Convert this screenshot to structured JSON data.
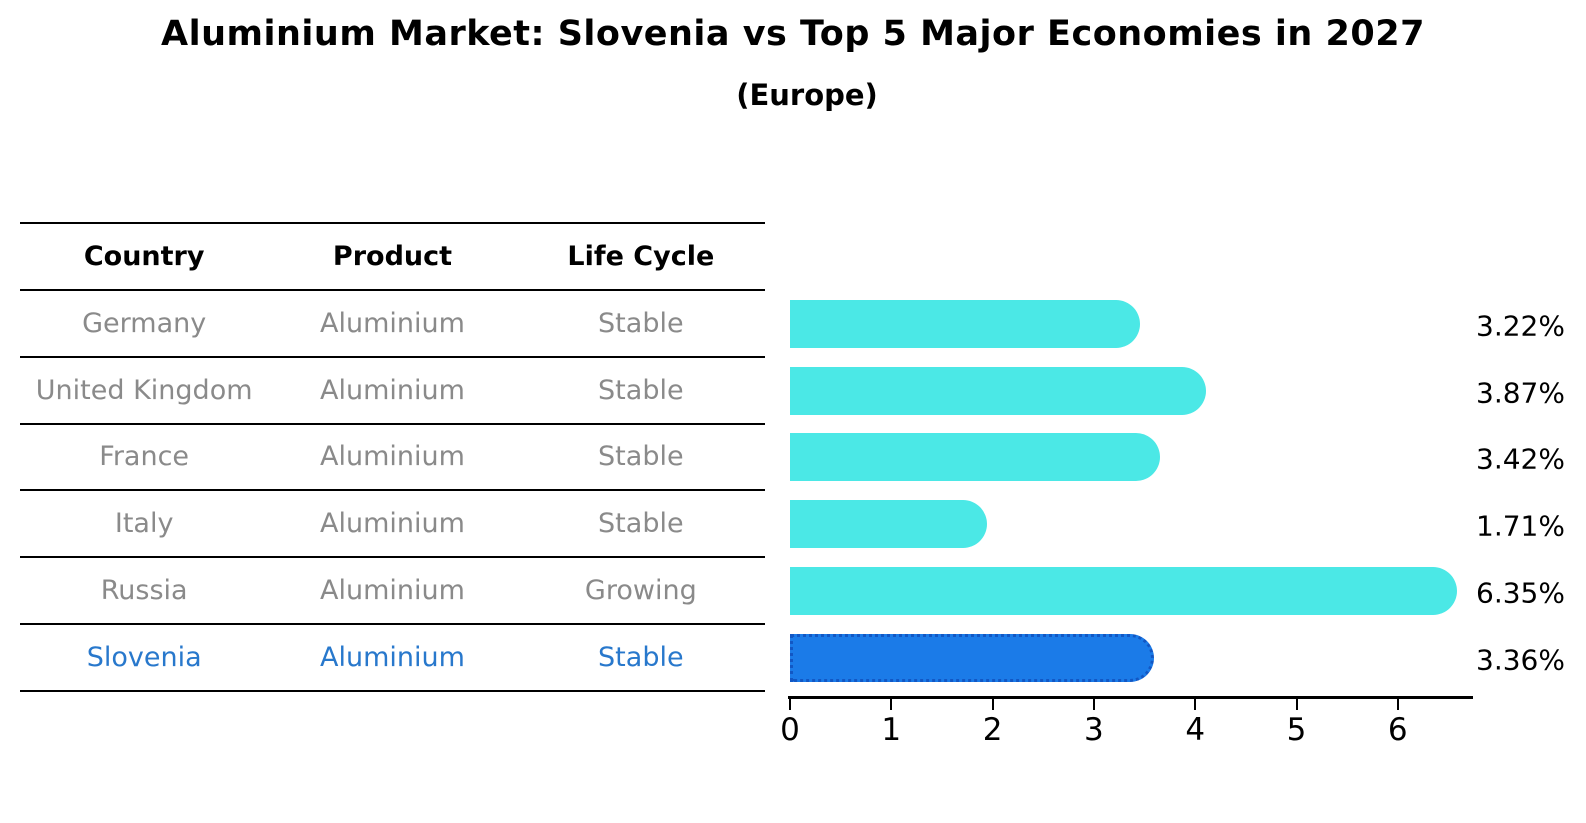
{
  "title": "Aluminium Market: Slovenia vs Top 5 Major Economies in 2027",
  "subtitle": "(Europe)",
  "table": {
    "headers": [
      "Country",
      "Product",
      "Life Cycle"
    ],
    "rows": [
      {
        "country": "Germany",
        "product": "Aluminium",
        "life_cycle": "Stable",
        "highlight": false
      },
      {
        "country": "United Kingdom",
        "product": "Aluminium",
        "life_cycle": "Stable",
        "highlight": false
      },
      {
        "country": "France",
        "product": "Aluminium",
        "life_cycle": "Stable",
        "highlight": false
      },
      {
        "country": "Italy",
        "product": "Aluminium",
        "life_cycle": "Stable",
        "highlight": false
      },
      {
        "country": "Russia",
        "product": "Aluminium",
        "life_cycle": "Growing",
        "highlight": false
      },
      {
        "country": "Slovenia",
        "product": "Aluminium",
        "life_cycle": "Stable",
        "highlight": true
      }
    ]
  },
  "chart_data": {
    "type": "bar",
    "orientation": "horizontal",
    "title": "Aluminium Market: Slovenia vs Top 5 Major Economies in 2027 (Europe)",
    "categories": [
      "Germany",
      "United Kingdom",
      "France",
      "Italy",
      "Russia",
      "Slovenia"
    ],
    "values": [
      3.22,
      3.87,
      3.42,
      1.71,
      6.35,
      3.36
    ],
    "value_labels": [
      "3.22%",
      "3.87%",
      "3.42%",
      "1.71%",
      "6.35%",
      "3.36%"
    ],
    "units": "percent",
    "x_ticks": [
      0,
      1,
      2,
      3,
      4,
      5,
      6
    ],
    "xlim": [
      0,
      6.74
    ],
    "grid": false,
    "legend": "none",
    "highlight_index": 5,
    "bar_colors": {
      "default": "#4BE8E6",
      "highlight": "#1B7BE8",
      "highlight_border": "#1257C4"
    }
  },
  "colors": {
    "background": "#ffffff",
    "title_text": "#000000",
    "table_line": "#000000",
    "table_text": "#8a8a8a",
    "table_header_text": "#000000",
    "highlight_text": "#2878cc",
    "axis": "#000000",
    "value_label_text": "#000000"
  }
}
